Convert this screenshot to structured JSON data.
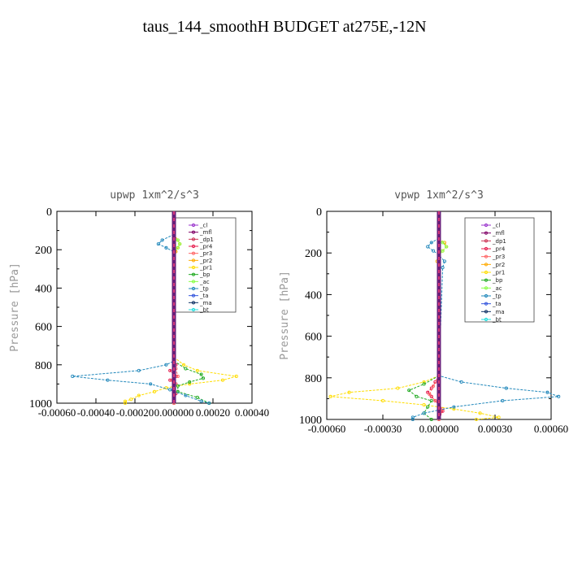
{
  "page": {
    "title": "taus_144_smoothH  BUDGET at275E,-12N"
  },
  "chart_data": [
    {
      "type": "line",
      "title": "upwp   1xm^2/s^3",
      "ylabel": "Pressure [hPa]",
      "ylim": [
        1000,
        0
      ],
      "xlim": [
        -0.0006,
        0.0004
      ],
      "yticks": [
        0,
        200,
        400,
        600,
        800,
        1000
      ],
      "xtick_labels": [
        "-0.00060",
        "-0.00040",
        "-0.00020",
        "0.000000",
        "0.00020",
        "0.00040"
      ],
      "xtick_values": [
        -0.0006,
        -0.0004,
        -0.0002,
        0.0,
        0.0002,
        0.0004
      ],
      "legend": [
        "_cl",
        "_mfl",
        "_dp1",
        "_pr4",
        "_pr3",
        "_pr2",
        "_pr1",
        "_bp",
        "_ac",
        "_tp",
        "_ta",
        "_ma",
        "_bt"
      ],
      "series": [
        {
          "name": "_cl",
          "color": "#9933cc",
          "p": [
            0,
            1000
          ],
          "v": [
            0,
            0
          ]
        },
        {
          "name": "_mfl",
          "color": "#800066",
          "p": [
            0,
            1000
          ],
          "v": [
            0,
            0
          ]
        },
        {
          "name": "_dp1",
          "color": "#cc3355",
          "p": [
            0,
            1000
          ],
          "v": [
            0,
            0
          ]
        },
        {
          "name": "_pr4",
          "color": "#e6194b",
          "p": [
            760,
            800,
            830,
            860,
            880,
            900,
            920,
            950,
            1000
          ],
          "v": [
            0,
            1e-05,
            -2e-05,
            1e-05,
            -2e-05,
            1e-05,
            0,
            1e-05,
            0
          ]
        },
        {
          "name": "_pr3",
          "color": "#ff6666",
          "p": [
            760,
            820,
            860,
            880,
            900,
            940,
            1000
          ],
          "v": [
            0,
            1e-05,
            2e-05,
            -1e-05,
            1e-05,
            0,
            0
          ]
        },
        {
          "name": "_pr2",
          "color": "#ffaa00",
          "p": [
            120,
            150,
            170,
            190,
            210,
            240
          ],
          "v": [
            0,
            2e-05,
            3e-05,
            2e-05,
            1e-05,
            0
          ]
        },
        {
          "name": "_pr1",
          "color": "#ffdd00",
          "p": [
            760,
            800,
            830,
            860,
            880,
            900,
            920,
            940,
            960,
            980,
            990,
            1000
          ],
          "v": [
            0,
            5e-05,
            0.00012,
            0.00032,
            0.00025,
            8e-05,
            -4e-05,
            -0.0001,
            -0.00018,
            -0.00022,
            -0.00025,
            -0.00025
          ]
        },
        {
          "name": "_bp",
          "color": "#22aa22",
          "p": [
            780,
            820,
            850,
            870,
            890,
            910,
            940,
            970,
            1000
          ],
          "v": [
            0,
            6e-05,
            0.00014,
            0.00015,
            8e-05,
            2e-05,
            2e-05,
            0.00012,
            0.00018
          ]
        },
        {
          "name": "_ac",
          "color": "#88ff44",
          "p": [
            130,
            150,
            170,
            190,
            210
          ],
          "v": [
            0,
            2e-05,
            3e-05,
            2e-05,
            0
          ]
        },
        {
          "name": "_tp",
          "color": "#2288bb",
          "p": [
            120,
            150,
            170,
            190,
            210,
            780,
            800,
            830,
            860,
            880,
            900,
            930,
            960,
            990,
            1000
          ],
          "v": [
            0,
            -6e-05,
            -8e-05,
            -4e-05,
            0,
            0,
            -4e-05,
            -0.00018,
            -0.00052,
            -0.00034,
            -0.00012,
            -2e-05,
            6e-05,
            0.00014,
            0.00018
          ]
        },
        {
          "name": "_ta",
          "color": "#3355dd",
          "p": [
            0,
            1000
          ],
          "v": [
            0,
            0
          ]
        },
        {
          "name": "_ma",
          "color": "#113366",
          "p": [
            0,
            1000
          ],
          "v": [
            0,
            0
          ]
        },
        {
          "name": "_bt",
          "color": "#22dddd",
          "p": [
            0,
            1000
          ],
          "v": [
            0,
            0
          ]
        }
      ]
    },
    {
      "type": "line",
      "title": "vpwp   1xm^2/s^3",
      "ylabel": "Pressure [hPa]",
      "ylim": [
        1000,
        0
      ],
      "xlim": [
        -0.0006,
        0.0006
      ],
      "yticks": [
        0,
        200,
        400,
        600,
        800,
        1000
      ],
      "xtick_labels": [
        "-0.00060",
        "-0.00030",
        "0.000000",
        "0.00030",
        "0.00060"
      ],
      "xtick_values": [
        -0.0006,
        -0.0003,
        0.0,
        0.0003,
        0.0006
      ],
      "legend": [
        "_cl",
        "_mfl",
        "_dp1",
        "_pr4",
        "_pr3",
        "_pr2",
        "_pr1",
        "_bp",
        "_ac",
        "_tp",
        "_ta",
        "_ma",
        "_bt"
      ],
      "series": [
        {
          "name": "_cl",
          "color": "#9933cc",
          "p": [
            0,
            1000
          ],
          "v": [
            0,
            0
          ]
        },
        {
          "name": "_mfl",
          "color": "#800066",
          "p": [
            0,
            1000
          ],
          "v": [
            0,
            0
          ]
        },
        {
          "name": "_dp1",
          "color": "#cc3355",
          "p": [
            0,
            1000
          ],
          "v": [
            0,
            0
          ]
        },
        {
          "name": "_pr4",
          "color": "#e6194b",
          "p": [
            790,
            820,
            850,
            870,
            890,
            910,
            930,
            960,
            1000
          ],
          "v": [
            0,
            -2e-05,
            -4e-05,
            -6e-05,
            -4e-05,
            -2e-05,
            0,
            2e-05,
            0
          ]
        },
        {
          "name": "_pr3",
          "color": "#ff6666",
          "p": [
            790,
            840,
            880,
            910,
            950,
            1000
          ],
          "v": [
            0,
            -3e-05,
            -5e-05,
            -2e-05,
            2e-05,
            0
          ]
        },
        {
          "name": "_pr2",
          "color": "#ffaa00",
          "p": [
            130,
            150,
            170,
            190,
            210,
            240,
            270,
            300
          ],
          "v": [
            0,
            3e-05,
            4e-05,
            2e-05,
            0,
            -1e-05,
            0,
            0
          ]
        },
        {
          "name": "_pr1",
          "color": "#ffdd00",
          "p": [
            790,
            820,
            850,
            870,
            890,
            910,
            930,
            950,
            970,
            990,
            1000
          ],
          "v": [
            0,
            -8e-05,
            -0.00022,
            -0.00048,
            -0.00058,
            -0.0003,
            -8e-05,
            8e-05,
            0.00022,
            0.00032,
            0.0002
          ]
        },
        {
          "name": "_bp",
          "color": "#22aa22",
          "p": [
            790,
            830,
            860,
            890,
            910,
            940,
            970,
            1000
          ],
          "v": [
            0,
            -8e-05,
            -0.00016,
            -0.00012,
            -4e-05,
            -6e-05,
            -8e-05,
            -4e-05
          ]
        },
        {
          "name": "_ac",
          "color": "#88ff44",
          "p": [
            130,
            150,
            170,
            190,
            210
          ],
          "v": [
            0,
            2e-05,
            4e-05,
            2e-05,
            0
          ]
        },
        {
          "name": "_tp",
          "color": "#2288bb",
          "p": [
            130,
            150,
            170,
            190,
            210,
            240,
            270,
            790,
            820,
            850,
            870,
            890,
            910,
            940,
            970,
            990,
            1000
          ],
          "v": [
            0,
            -4e-05,
            -6e-05,
            -3e-05,
            0,
            3e-05,
            2e-05,
            0,
            0.00012,
            0.00036,
            0.00058,
            0.00064,
            0.00034,
            8e-05,
            -8e-05,
            -0.00014,
            -0.00014
          ]
        },
        {
          "name": "_ta",
          "color": "#3355dd",
          "p": [
            0,
            1000
          ],
          "v": [
            0,
            0
          ]
        },
        {
          "name": "_ma",
          "color": "#113366",
          "p": [
            0,
            1000
          ],
          "v": [
            0,
            0
          ]
        },
        {
          "name": "_bt",
          "color": "#22dddd",
          "p": [
            0,
            1000
          ],
          "v": [
            0,
            0
          ]
        }
      ]
    }
  ]
}
